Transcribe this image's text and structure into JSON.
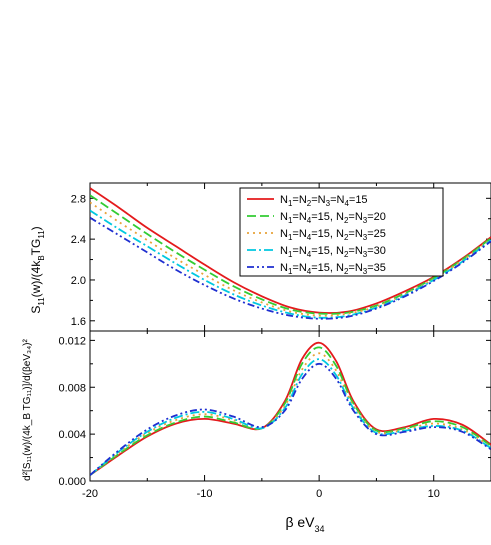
{
  "figure_background": "#ffffff",
  "chart_data": [
    {
      "type": "line",
      "panel": "top",
      "ylabel_main": "S",
      "ylabel_sub1": "11",
      "ylabel_mid": "(w)/(4k",
      "ylabel_sub2": "B",
      "ylabel_mid2": "TG",
      "ylabel_sub3": "11",
      "ylabel_end": ")",
      "xlim": [
        -20,
        15
      ],
      "ylim": [
        1.5,
        2.95
      ],
      "yticks": [
        1.6,
        2.0,
        2.4,
        2.8
      ],
      "ytick_labels": [
        "1.6",
        "2.0",
        "2.4",
        "2.8"
      ],
      "legend_position": "top-right",
      "series": [
        {
          "name": "N1=N2=N3=N4=15",
          "color": "#e41a1c",
          "dash": "solid",
          "x": [
            -20,
            -17.5,
            -15,
            -12.5,
            -10,
            -7.5,
            -5,
            -2.5,
            0,
            2.5,
            5,
            7.5,
            10,
            12.5,
            15
          ],
          "y": [
            2.9,
            2.71,
            2.51,
            2.33,
            2.15,
            1.98,
            1.84,
            1.73,
            1.68,
            1.69,
            1.77,
            1.89,
            2.03,
            2.21,
            2.42
          ]
        },
        {
          "name": "N1=N4=15, N2=N3=20",
          "color": "#33cc33",
          "dash": "dash",
          "x": [
            -20,
            -17.5,
            -15,
            -12.5,
            -10,
            -7.5,
            -5,
            -2.5,
            0,
            2.5,
            5,
            7.5,
            10,
            12.5,
            15
          ],
          "y": [
            2.83,
            2.64,
            2.45,
            2.27,
            2.1,
            1.94,
            1.81,
            1.71,
            1.67,
            1.68,
            1.75,
            1.87,
            2.02,
            2.2,
            2.41
          ]
        },
        {
          "name": "N1=N4=15, N2=N3=25",
          "color": "#e8a33a",
          "dash": "dot",
          "x": [
            -20,
            -17.5,
            -15,
            -12.5,
            -10,
            -7.5,
            -5,
            -2.5,
            0,
            2.5,
            5,
            7.5,
            10,
            12.5,
            15
          ],
          "y": [
            2.76,
            2.57,
            2.39,
            2.21,
            2.05,
            1.9,
            1.78,
            1.69,
            1.65,
            1.67,
            1.74,
            1.86,
            2.01,
            2.19,
            2.4
          ]
        },
        {
          "name": "N1=N4=15, N2=N3=30",
          "color": "#00c8e0",
          "dash": "dashdot",
          "x": [
            -20,
            -17.5,
            -15,
            -12.5,
            -10,
            -7.5,
            -5,
            -2.5,
            0,
            2.5,
            5,
            7.5,
            10,
            12.5,
            15
          ],
          "y": [
            2.68,
            2.5,
            2.33,
            2.16,
            2.0,
            1.86,
            1.75,
            1.67,
            1.63,
            1.65,
            1.73,
            1.85,
            2.0,
            2.18,
            2.39
          ]
        },
        {
          "name": "N1=N4=15, N2=N3=35",
          "color": "#1f2fd0",
          "dash": "dashdotdot",
          "x": [
            -20,
            -17.5,
            -15,
            -12.5,
            -10,
            -7.5,
            -5,
            -2.5,
            0,
            2.5,
            5,
            7.5,
            10,
            12.5,
            15
          ],
          "y": [
            2.61,
            2.44,
            2.27,
            2.1,
            1.95,
            1.82,
            1.72,
            1.65,
            1.62,
            1.64,
            1.72,
            1.84,
            1.99,
            2.17,
            2.38
          ]
        }
      ]
    },
    {
      "type": "line",
      "panel": "bottom",
      "ylabel_text": "d²[S₁₁(w)/(4k_B TG₁₁)]/d(βeV₃₄)²",
      "xlabel_main": "β eV",
      "xlabel_sub": "34",
      "xlim": [
        -20,
        15
      ],
      "ylim": [
        0.0,
        0.0128
      ],
      "xticks": [
        -20,
        -10,
        0,
        10
      ],
      "xtick_labels": [
        "-20",
        "-10",
        "0",
        "10"
      ],
      "yticks": [
        0.0,
        0.004,
        0.008,
        0.012
      ],
      "ytick_labels": [
        "0.000",
        "0.004",
        "0.008",
        "0.012"
      ],
      "series": [
        {
          "name": "N1=N2=N3=N4=15",
          "color": "#e41a1c",
          "dash": "solid",
          "x": [
            -20,
            -17.5,
            -15,
            -12.5,
            -10,
            -7.5,
            -5,
            -3,
            -1.5,
            0,
            1.5,
            3,
            5,
            7.5,
            10,
            12.5,
            15
          ],
          "y": [
            0.0005,
            0.0022,
            0.0038,
            0.0049,
            0.0053,
            0.0049,
            0.0045,
            0.0068,
            0.0104,
            0.0118,
            0.0102,
            0.0068,
            0.0044,
            0.0046,
            0.0053,
            0.0048,
            0.0031
          ]
        },
        {
          "name": "N1=N4=15, N2=N3=20",
          "color": "#33cc33",
          "dash": "dash",
          "x": [
            -20,
            -17.5,
            -15,
            -12.5,
            -10,
            -7.5,
            -5,
            -3,
            -1.5,
            0,
            1.5,
            3,
            5,
            7.5,
            10,
            12.5,
            15
          ],
          "y": [
            0.0005,
            0.0023,
            0.0039,
            0.005,
            0.0055,
            0.005,
            0.0045,
            0.0066,
            0.01,
            0.0114,
            0.0098,
            0.0066,
            0.0043,
            0.0045,
            0.0051,
            0.0046,
            0.003
          ]
        },
        {
          "name": "N1=N4=15, N2=N3=25",
          "color": "#e8a33a",
          "dash": "dot",
          "x": [
            -20,
            -17.5,
            -15,
            -12.5,
            -10,
            -7.5,
            -5,
            -3,
            -1.5,
            0,
            1.5,
            3,
            5,
            7.5,
            10,
            12.5,
            15
          ],
          "y": [
            0.0005,
            0.0024,
            0.0041,
            0.0052,
            0.0057,
            0.0052,
            0.0045,
            0.0064,
            0.0095,
            0.0109,
            0.0094,
            0.0064,
            0.0042,
            0.0044,
            0.0049,
            0.0044,
            0.0029
          ]
        },
        {
          "name": "N1=N4=15, N2=N3=30",
          "color": "#00c8e0",
          "dash": "dashdot",
          "x": [
            -20,
            -17.5,
            -15,
            -12.5,
            -10,
            -7.5,
            -5,
            -3,
            -1.5,
            0,
            1.5,
            3,
            5,
            7.5,
            10,
            12.5,
            15
          ],
          "y": [
            0.0005,
            0.0025,
            0.0042,
            0.0054,
            0.0059,
            0.0053,
            0.0045,
            0.0062,
            0.0091,
            0.0104,
            0.009,
            0.0062,
            0.0041,
            0.0043,
            0.0047,
            0.0043,
            0.0028
          ]
        },
        {
          "name": "N1=N4=15, N2=N3=35",
          "color": "#1f2fd0",
          "dash": "dashdotdot",
          "x": [
            -20,
            -17.5,
            -15,
            -12.5,
            -10,
            -7.5,
            -5,
            -3,
            -1.5,
            0,
            1.5,
            3,
            5,
            7.5,
            10,
            12.5,
            15
          ],
          "y": [
            0.0005,
            0.0026,
            0.0044,
            0.0056,
            0.0061,
            0.0055,
            0.0046,
            0.006,
            0.0087,
            0.01,
            0.0087,
            0.006,
            0.004,
            0.0042,
            0.0046,
            0.0042,
            0.0027
          ]
        }
      ]
    }
  ],
  "legend": [
    {
      "parts": [
        "N",
        "1",
        "=N",
        "2",
        "=N",
        "3",
        "=N",
        "4",
        "=15"
      ]
    },
    {
      "parts": [
        "N",
        "1",
        "=N",
        "4",
        "=15, N",
        "2",
        "=N",
        "3",
        "=20"
      ]
    },
    {
      "parts": [
        "N",
        "1",
        "=N",
        "4",
        "=15, N",
        "2",
        "=N",
        "3",
        "=25"
      ]
    },
    {
      "parts": [
        "N",
        "1",
        "=N",
        "4",
        "=15, N",
        "2",
        "=N",
        "3",
        "=30"
      ]
    },
    {
      "parts": [
        "N",
        "1",
        "=N",
        "4",
        "=15, N",
        "2",
        "=N",
        "3",
        "=35"
      ]
    }
  ]
}
